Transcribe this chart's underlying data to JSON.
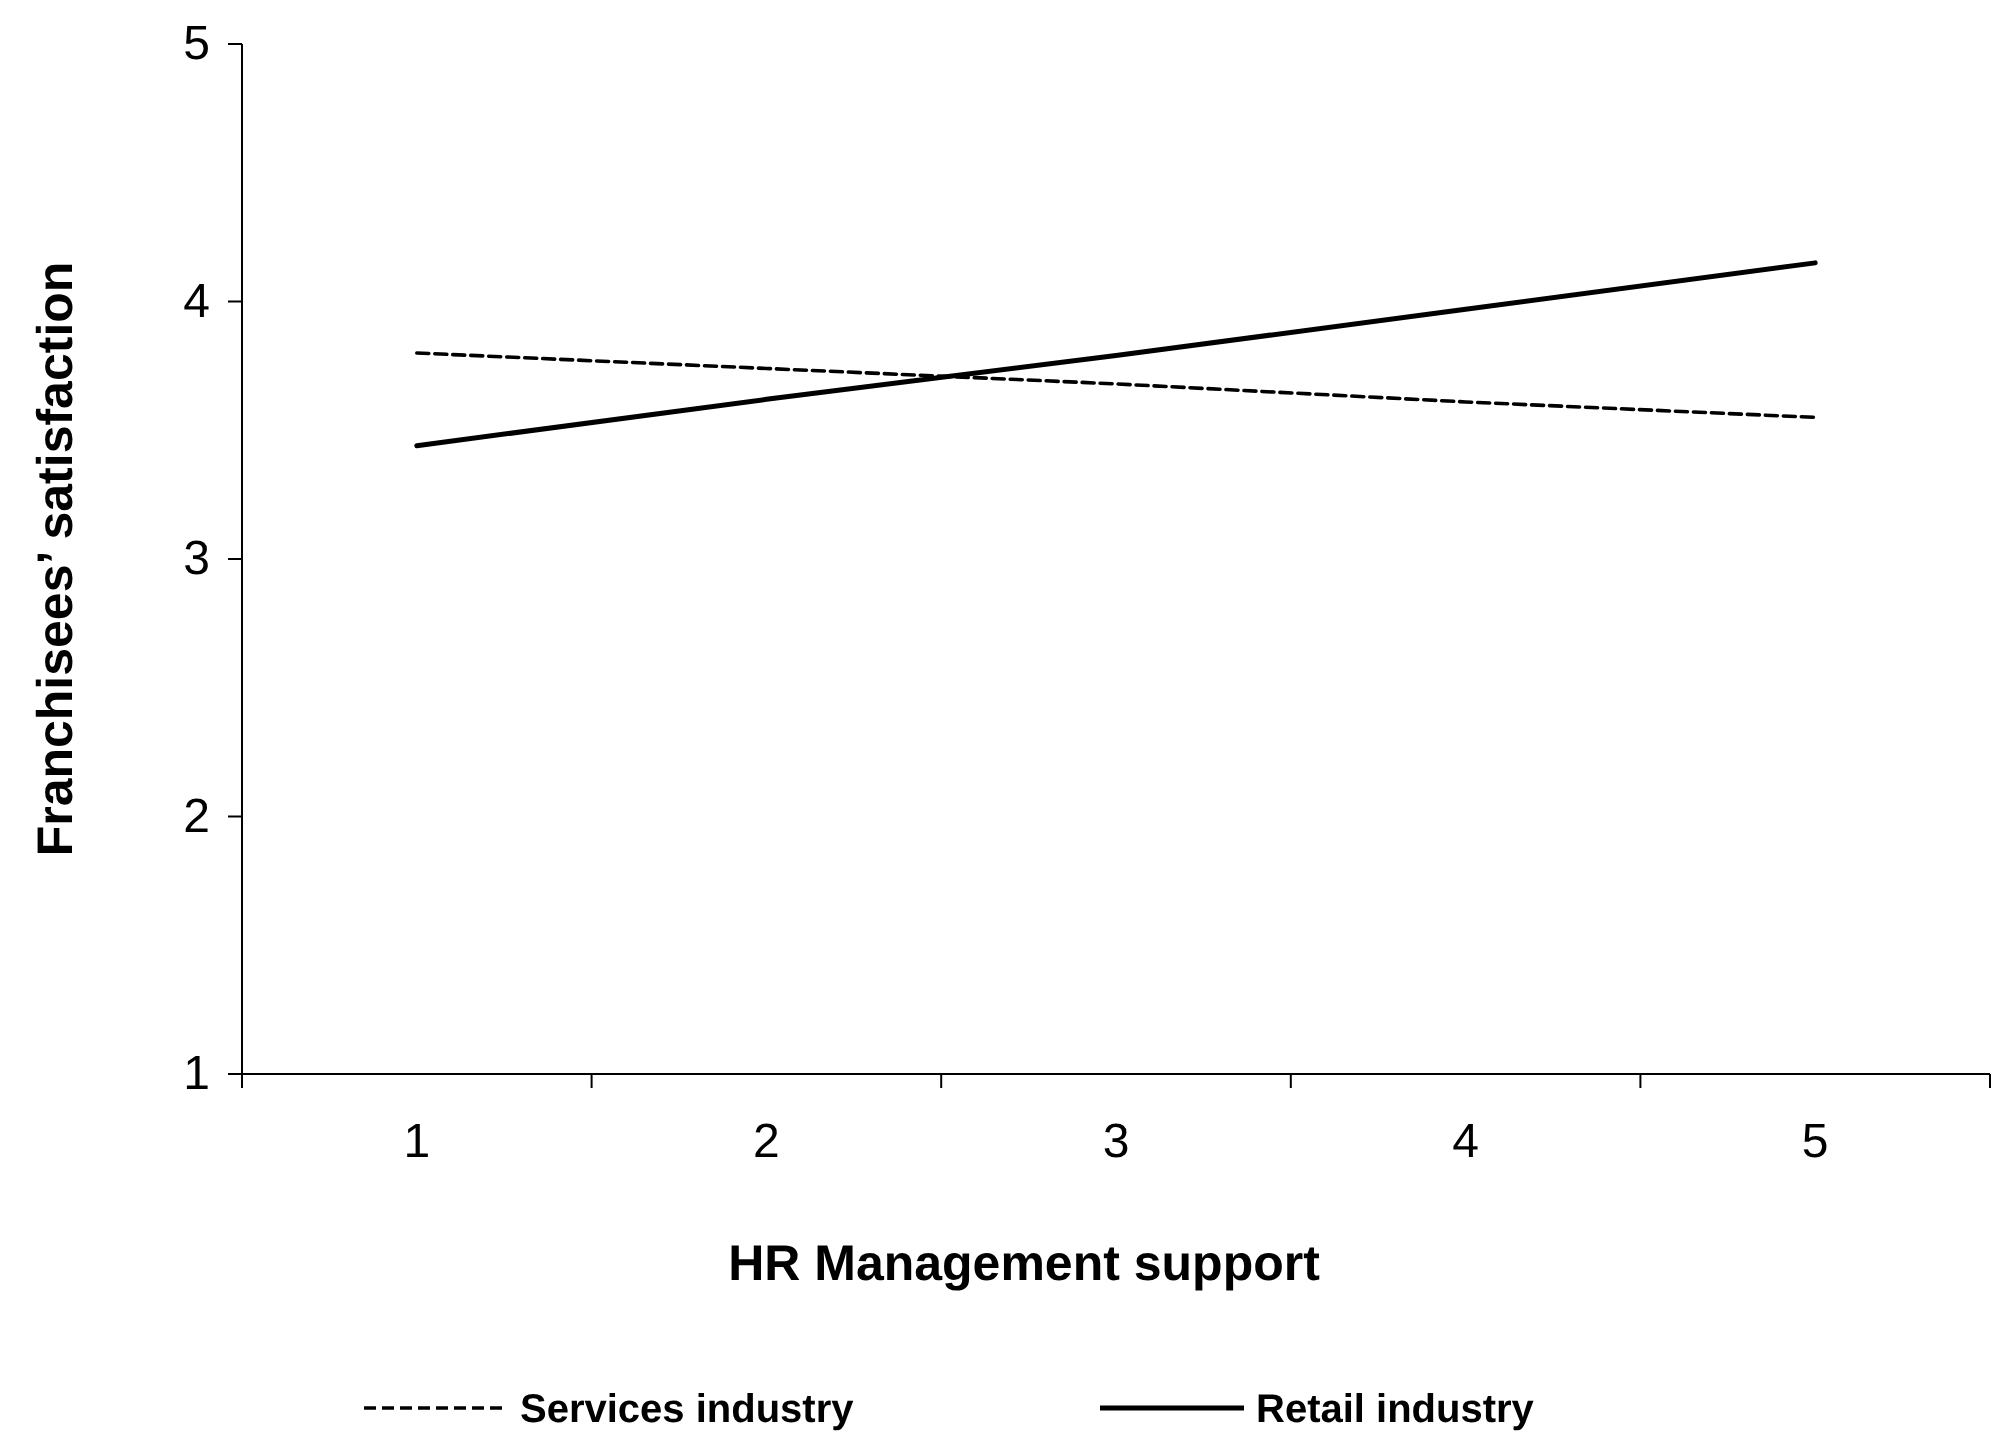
{
  "chart_data": {
    "type": "line",
    "xlabel": "HR Management support",
    "ylabel": "Franchisees’ satisfaction",
    "categories": [
      "1",
      "2",
      "3",
      "4",
      "5"
    ],
    "series": [
      {
        "name": "Services industry",
        "color": "#000000",
        "line_style": "dashed",
        "values": [
          3.8,
          3.74,
          3.68,
          3.61,
          3.55
        ]
      },
      {
        "name": "Retail industry",
        "color": "#000000",
        "line_style": "solid",
        "values": [
          3.44,
          3.62,
          3.79,
          3.97,
          4.15
        ]
      }
    ],
    "ylim": [
      1,
      5
    ],
    "yticks": [
      1,
      2,
      3,
      4,
      5
    ],
    "grid": false,
    "legend": "bottom",
    "marker": "none"
  }
}
